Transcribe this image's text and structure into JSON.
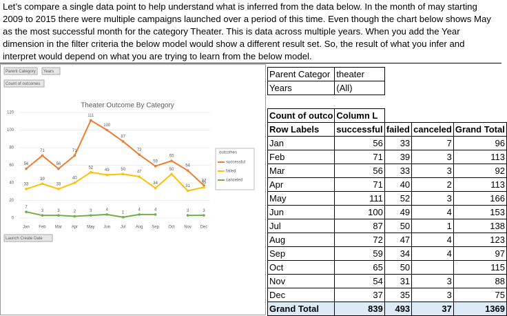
{
  "paragraph": "Let’s compare a single data point to help understand what is inferred from the data below. In the month of may starting 2009 to 2015 there were multiple campaigns launched over a period of this time. Even though the chart below shows May as the most successful month for the category Theater. This is data across multiple years. When you add the Year dimension in the filter criteria the below model would show a different result set. So, the result of what you infer and interpret would depend on what you are trying to learn from the below model.",
  "chart_data": {
    "type": "line",
    "title": "Theater Outcome By Category",
    "filter_buttons": [
      "Parent Category",
      "Years"
    ],
    "value_button": "Count of outcomes",
    "axis_button": "Launch Create Date",
    "legend_title": "outcomes",
    "categories": [
      "Jan",
      "Feb",
      "Mar",
      "Apr",
      "May",
      "Jun",
      "Jul",
      "Aug",
      "Sep",
      "Oct",
      "Nov",
      "Dec"
    ],
    "series": [
      {
        "name": "successful",
        "color": "#ed7d31",
        "values": [
          56,
          71,
          56,
          71,
          111,
          100,
          87,
          72,
          59,
          65,
          54,
          37
        ]
      },
      {
        "name": "failed",
        "color": "#ffc000",
        "values": [
          33,
          39,
          33,
          40,
          52,
          49,
          50,
          47,
          34,
          50,
          31,
          35
        ]
      },
      {
        "name": "canceled",
        "color": "#70ad47",
        "values": [
          7,
          3,
          3,
          2,
          3,
          4,
          1,
          4,
          4,
          null,
          3,
          3
        ]
      }
    ],
    "ylim": [
      0,
      120
    ],
    "yticks": [
      0,
      20,
      40,
      60,
      80,
      100,
      120
    ],
    "grid": true
  },
  "pivot": {
    "filters": [
      [
        "Parent Categor",
        "theater"
      ],
      [
        "Years",
        "(All)"
      ]
    ],
    "value_header": [
      "Count of outco",
      "Column L"
    ],
    "headers": [
      "Row Labels",
      "successful",
      "failed",
      "canceled",
      "Grand Total"
    ],
    "rows": [
      [
        "Jan",
        56,
        33,
        7,
        96
      ],
      [
        "Feb",
        71,
        39,
        3,
        113
      ],
      [
        "Mar",
        56,
        33,
        3,
        92
      ],
      [
        "Apr",
        71,
        40,
        2,
        113
      ],
      [
        "May",
        111,
        52,
        3,
        166
      ],
      [
        "Jun",
        100,
        49,
        4,
        153
      ],
      [
        "Jul",
        87,
        50,
        1,
        138
      ],
      [
        "Aug",
        72,
        47,
        4,
        123
      ],
      [
        "Sep",
        59,
        34,
        4,
        97
      ],
      [
        "Oct",
        65,
        50,
        null,
        115
      ],
      [
        "Nov",
        54,
        31,
        3,
        88
      ],
      [
        "Dec",
        37,
        35,
        3,
        75
      ],
      [
        "Grand Total",
        839,
        493,
        37,
        1369
      ]
    ]
  }
}
